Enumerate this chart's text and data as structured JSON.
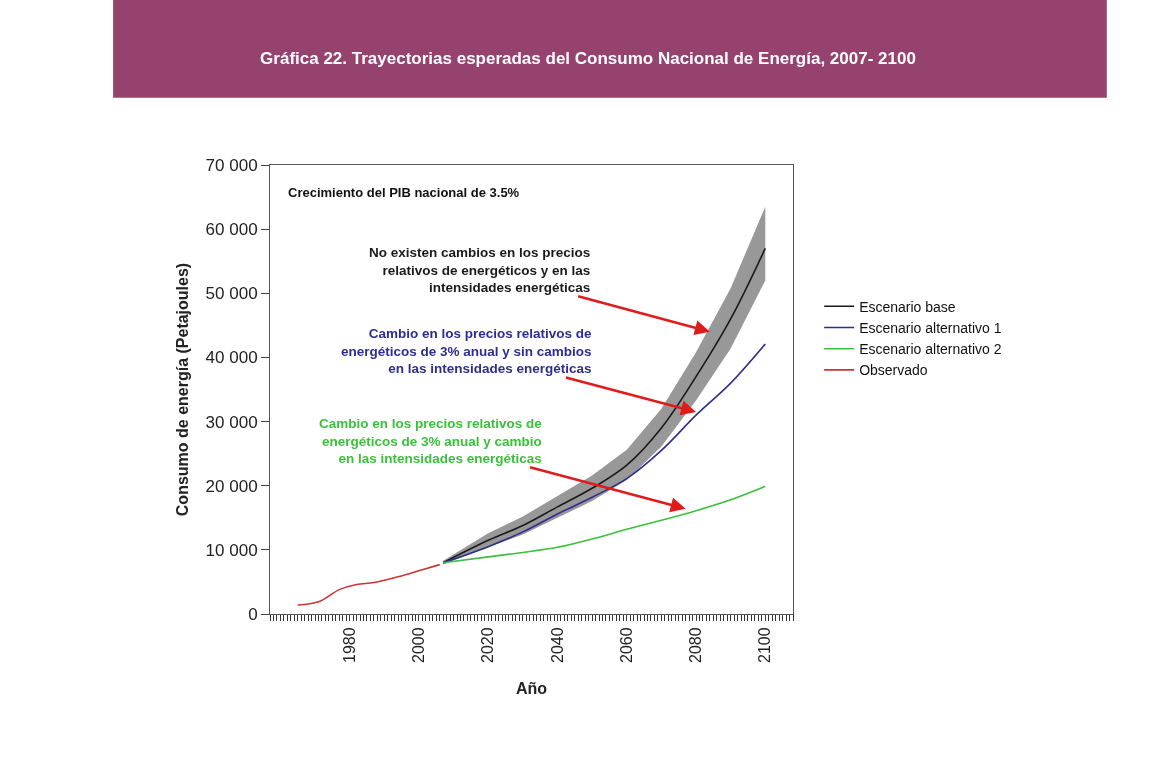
{
  "chart_data": {
    "type": "line",
    "title": "Gráfica 22. Trayectorias esperadas del Consumo Nacional de Energía, 2007- 2100",
    "xlabel": "Año",
    "ylabel": "Consumo de energía (Petajoules)",
    "xlim": [
      1957,
      2108
    ],
    "xticks": [
      1980,
      2000,
      2020,
      2040,
      2060,
      2080,
      2100
    ],
    "ylim": [
      0,
      70000
    ],
    "yticks": [
      {
        "value": 0,
        "label": "0"
      },
      {
        "value": 10000,
        "label": "10 000"
      },
      {
        "value": 20000,
        "label": "20 000"
      },
      {
        "value": 30000,
        "label": "30 000"
      },
      {
        "value": 40000,
        "label": "40 000"
      },
      {
        "value": 50000,
        "label": "50 000"
      },
      {
        "value": 60000,
        "label": "60 000"
      },
      {
        "value": 70000,
        "label": "70 000"
      }
    ],
    "legend": "right",
    "series": [
      {
        "name": "Escenario base",
        "color": "#1a1a1a",
        "x": [
          2007,
          2020,
          2030,
          2040,
          2050,
          2060,
          2070,
          2080,
          2090,
          2100
        ],
        "values": [
          8000,
          11500,
          13800,
          16700,
          19600,
          23200,
          29000,
          37000,
          46000,
          57000
        ],
        "lower": [
          7700,
          10400,
          12400,
          15000,
          17600,
          20900,
          26100,
          33300,
          41400,
          52000
        ],
        "upper": [
          8300,
          12600,
          15200,
          18400,
          21600,
          25600,
          32000,
          40800,
          50800,
          63500
        ]
      },
      {
        "name": "Escenario alternativo 1",
        "color": "#2e2e8f",
        "x": [
          2007,
          2020,
          2030,
          2040,
          2050,
          2060,
          2070,
          2080,
          2090,
          2100
        ],
        "values": [
          8000,
          10500,
          12800,
          15600,
          18200,
          21100,
          25500,
          31000,
          36000,
          42100
        ]
      },
      {
        "name": "Escenario alternativo 2",
        "color": "#3cbf3c",
        "x": [
          2007,
          2020,
          2030,
          2040,
          2050,
          2060,
          2070,
          2080,
          2090,
          2100
        ],
        "values": [
          8000,
          8900,
          9600,
          10400,
          11700,
          13200,
          14600,
          16100,
          17800,
          19900
        ]
      },
      {
        "name": "Observado",
        "color": "#cc3333",
        "x": [
          1965,
          1971,
          1977,
          1982,
          1987,
          1994,
          2001,
          2006
        ],
        "values": [
          1400,
          1900,
          3800,
          4600,
          4900,
          5800,
          6900,
          7700
        ]
      }
    ],
    "annotations": [
      "Crecimiento del PIB nacional de 3.5%",
      {
        "text": "No existen cambios en los precios\nrelativos de energéticos y en las\nintensidades energéticas",
        "x": 2084,
        "y": 44000
      },
      {
        "text": "Cambio en los precios relativos de\nenergéticos de 3% anual y sin cambios\nen las intensidades energéticas",
        "x": 2080,
        "y": 31500
      },
      {
        "text": "Cambio en los precios relativos de\nenergéticos de 3% anual y cambio\nen las intensidades energéticas",
        "x": 2077,
        "y": 16400
      }
    ]
  }
}
